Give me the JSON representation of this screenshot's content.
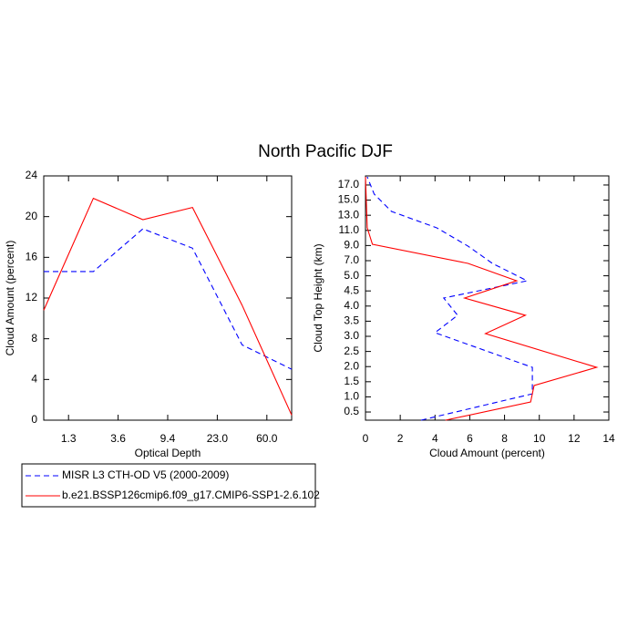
{
  "title": "North Pacific DJF",
  "chart_data": [
    {
      "type": "line",
      "orientation": "vertical",
      "xlabel": "Optical Depth",
      "ylabel": "Cloud Amount (percent)",
      "x": [
        0,
        1,
        2,
        3,
        4,
        5
      ],
      "xlim": [
        0,
        5
      ],
      "xticks": [
        {
          "value": 0.5,
          "label": "1.3"
        },
        {
          "value": 1.5,
          "label": "3.6"
        },
        {
          "value": 2.5,
          "label": "9.4"
        },
        {
          "value": 3.5,
          "label": "23.0"
        },
        {
          "value": 4.5,
          "label": "60.0"
        }
      ],
      "ylim": [
        0,
        24
      ],
      "yticks": [
        0,
        4,
        8,
        12,
        16,
        20,
        24
      ],
      "series": [
        {
          "name": "MISR L3 CTH-OD V5 (2000-2009)",
          "color": "#0000ff",
          "dash": true,
          "values": [
            14.6,
            14.6,
            18.8,
            16.9,
            7.4,
            5.0
          ]
        },
        {
          "name": "b.e21.BSSP126cmip6.f09_g17.CMIP6-SSP1-2.6.102",
          "color": "#ff0000",
          "dash": false,
          "values": [
            10.8,
            21.8,
            19.7,
            20.9,
            11.3,
            0.5
          ]
        }
      ]
    },
    {
      "type": "line",
      "orientation": "horizontal",
      "xlabel": "Cloud Amount (percent)",
      "ylabel": "Cloud Top Height (km)",
      "xlim": [
        0,
        14
      ],
      "xticks": [
        0,
        2,
        4,
        6,
        8,
        10,
        12,
        14
      ],
      "ylim": [
        -0.54,
        15.6
      ],
      "yticks": [
        {
          "value": 0,
          "label": "0.5"
        },
        {
          "value": 1,
          "label": "1.0"
        },
        {
          "value": 2,
          "label": "1.5"
        },
        {
          "value": 3,
          "label": "2.0"
        },
        {
          "value": 4,
          "label": "2.5"
        },
        {
          "value": 5,
          "label": "3.0"
        },
        {
          "value": 6,
          "label": "3.5"
        },
        {
          "value": 7,
          "label": "4.0"
        },
        {
          "value": 8,
          "label": "4.5"
        },
        {
          "value": 9,
          "label": "5.0"
        },
        {
          "value": 10,
          "label": "7.0"
        },
        {
          "value": 11,
          "label": "9.0"
        },
        {
          "value": 12,
          "label": "11.0"
        },
        {
          "value": 13,
          "label": "13.0"
        },
        {
          "value": 14,
          "label": "15.0"
        },
        {
          "value": 15,
          "label": "17.0"
        }
      ],
      "series": [
        {
          "color": "#0000ff",
          "dash": true,
          "values": [
            3.2,
            9.6,
            9.6,
            4.0,
            5.3,
            4.5,
            9.3,
            7.3,
            5.9,
            4.1,
            1.5,
            0.5,
            0.1
          ],
          "y": [
            -0.54,
            1.2,
            2.95,
            5.24,
            6.39,
            7.53,
            8.67,
            9.82,
            10.96,
            12.17,
            13.25,
            14.4,
            15.54
          ]
        },
        {
          "color": "#ff0000",
          "dash": false,
          "values": [
            4.6,
            9.5,
            9.7,
            13.3,
            6.9,
            9.2,
            5.7,
            8.7,
            5.9,
            0.4,
            0.1,
            0
          ],
          "y": [
            -0.54,
            0.66,
            1.75,
            2.95,
            5.18,
            6.39,
            7.53,
            8.67,
            9.82,
            11.08,
            12.17,
            15.54
          ]
        }
      ]
    }
  ]
}
